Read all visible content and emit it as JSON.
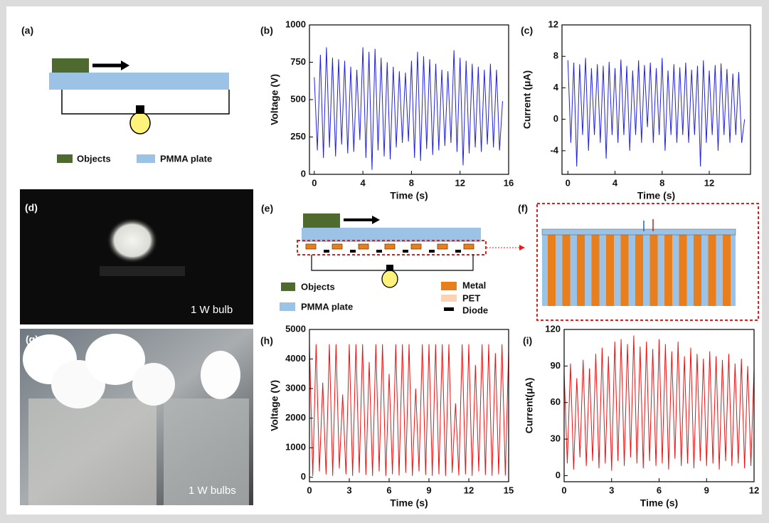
{
  "panel_labels": [
    "(a)",
    "(b)",
    "(c)",
    "(d)",
    "(e)",
    "(f)",
    "(g)",
    "(h)",
    "(i)"
  ],
  "diagram_a": {
    "legend": [
      "Objects",
      "PMMA plate"
    ]
  },
  "photo_d": {
    "caption": "1 W bulb"
  },
  "diagram_e": {
    "legend": [
      "Objects",
      "PMMA plate",
      "Metal",
      "PET",
      "Diode"
    ]
  },
  "photo_g": {
    "caption": "1 W bulbs"
  },
  "chart_data": [
    {
      "type": "line",
      "x_label": "Time (s)",
      "y_label": "Voltage (V)",
      "color": "#2222dd",
      "xlim": [
        -0.4,
        16
      ],
      "xticks": [
        0,
        4,
        8,
        12,
        16
      ],
      "ylim": [
        0,
        1000
      ],
      "yticks": [
        0,
        250,
        500,
        750,
        1000
      ],
      "x": [
        0,
        0.25,
        0.5,
        0.75,
        1,
        1.25,
        1.5,
        1.75,
        2,
        2.25,
        2.5,
        2.75,
        3,
        3.25,
        3.5,
        3.75,
        4,
        4.25,
        4.5,
        4.75,
        5,
        5.25,
        5.5,
        5.75,
        6,
        6.25,
        6.5,
        6.75,
        7,
        7.25,
        7.5,
        7.75,
        8,
        8.25,
        8.5,
        8.75,
        9,
        9.25,
        9.5,
        9.75,
        10,
        10.25,
        10.5,
        10.75,
        11,
        11.25,
        11.5,
        11.75,
        12,
        12.25,
        12.5,
        12.75,
        13,
        13.25,
        13.5,
        13.75,
        14,
        14.25,
        14.5,
        14.75,
        15,
        15.25,
        15.5
      ],
      "values": [
        650,
        160,
        800,
        110,
        850,
        180,
        780,
        120,
        770,
        200,
        760,
        140,
        720,
        150,
        700,
        230,
        850,
        110,
        820,
        30,
        840,
        160,
        780,
        120,
        750,
        100,
        720,
        180,
        690,
        210,
        680,
        220,
        760,
        110,
        820,
        90,
        790,
        170,
        770,
        130,
        740,
        160,
        700,
        190,
        690,
        210,
        830,
        150,
        780,
        60,
        760,
        140,
        740,
        180,
        720,
        150,
        700,
        200,
        740,
        180,
        700,
        160,
        490
      ]
    },
    {
      "type": "line",
      "x_label": "Time (s)",
      "y_label": "Current (μA)",
      "color": "#2222dd",
      "xlim": [
        -0.5,
        15.5
      ],
      "xticks": [
        0,
        4,
        8,
        12
      ],
      "ylim": [
        -7,
        12
      ],
      "yticks": [
        -4,
        0,
        4,
        8,
        12
      ],
      "x": [
        0,
        0.25,
        0.5,
        0.75,
        1,
        1.25,
        1.5,
        1.75,
        2,
        2.25,
        2.5,
        2.75,
        3,
        3.25,
        3.5,
        3.75,
        4,
        4.25,
        4.5,
        4.75,
        5,
        5.25,
        5.5,
        5.75,
        6,
        6.25,
        6.5,
        6.75,
        7,
        7.25,
        7.5,
        7.75,
        8,
        8.25,
        8.5,
        8.75,
        9,
        9.25,
        9.5,
        9.75,
        10,
        10.25,
        10.5,
        10.75,
        11,
        11.25,
        11.5,
        11.75,
        12,
        12.25,
        12.5,
        12.75,
        13,
        13.25,
        13.5,
        13.75,
        14,
        14.25,
        14.5,
        14.75,
        15
      ],
      "values": [
        7.5,
        -3,
        7.2,
        -6,
        7,
        -2,
        7.8,
        -4,
        6.5,
        -2,
        7,
        -3,
        6.8,
        -5,
        7.3,
        -2,
        6.5,
        -3,
        7.6,
        -2,
        6.8,
        -4,
        6.2,
        -2,
        7.5,
        -3,
        6.9,
        -1,
        7.2,
        -3,
        6.5,
        -2,
        7.8,
        -4,
        6.2,
        -2,
        7,
        -3,
        6.6,
        -2,
        7.2,
        -3,
        6.3,
        -2,
        6.8,
        -6,
        7.5,
        -3,
        6.2,
        -2,
        6.9,
        -4,
        7.1,
        -2,
        6.4,
        -3,
        5.8,
        -2,
        6,
        -3,
        0
      ]
    },
    {
      "type": "line",
      "x_label": "Time (s)",
      "y_label": "Voltage (V)",
      "color": "#ee1111",
      "xlim": [
        0,
        15
      ],
      "xticks": [
        0,
        3,
        6,
        9,
        12,
        15
      ],
      "ylim": [
        -150,
        5000
      ],
      "yticks": [
        0,
        1000,
        2000,
        3000,
        4000,
        5000
      ],
      "x": [
        0,
        0.25,
        0.5,
        0.75,
        1,
        1.25,
        1.5,
        1.75,
        2,
        2.25,
        2.5,
        2.75,
        3,
        3.25,
        3.5,
        3.75,
        4,
        4.25,
        4.5,
        4.75,
        5,
        5.25,
        5.5,
        5.75,
        6,
        6.25,
        6.5,
        6.75,
        7,
        7.25,
        7.5,
        7.75,
        8,
        8.25,
        8.5,
        8.75,
        9,
        9.25,
        9.5,
        9.75,
        10,
        10.25,
        10.5,
        10.75,
        11,
        11.25,
        11.5,
        11.75,
        12,
        12.25,
        12.5,
        12.75,
        13,
        13.25,
        13.5,
        13.75,
        14,
        14.25,
        14.5,
        14.75,
        15
      ],
      "values": [
        4500,
        50,
        4500,
        200,
        3200,
        100,
        4500,
        50,
        4500,
        300,
        2800,
        100,
        4500,
        50,
        4500,
        150,
        4500,
        80,
        3900,
        50,
        4500,
        200,
        4500,
        50,
        3500,
        100,
        4500,
        60,
        4500,
        150,
        4500,
        50,
        3000,
        200,
        4500,
        80,
        4500,
        50,
        4500,
        100,
        4500,
        50,
        4500,
        150,
        2500,
        60,
        4500,
        100,
        4500,
        50,
        3800,
        200,
        4500,
        80,
        4500,
        50,
        4200,
        100,
        4500,
        60,
        4300
      ]
    },
    {
      "type": "line",
      "x_label": "Time (s)",
      "y_label": "Current(μA)",
      "color": "#ee1111",
      "xlim": [
        0,
        12
      ],
      "xticks": [
        0,
        3,
        6,
        9,
        12
      ],
      "ylim": [
        -5,
        120
      ],
      "yticks": [
        0,
        30,
        60,
        90,
        120
      ],
      "x": [
        0,
        0.2,
        0.4,
        0.6,
        0.8,
        1,
        1.2,
        1.4,
        1.6,
        1.8,
        2,
        2.2,
        2.4,
        2.6,
        2.8,
        3,
        3.2,
        3.4,
        3.6,
        3.8,
        4,
        4.2,
        4.4,
        4.6,
        4.8,
        5,
        5.2,
        5.4,
        5.6,
        5.8,
        6,
        6.2,
        6.4,
        6.6,
        6.8,
        7,
        7.2,
        7.4,
        7.6,
        7.8,
        8,
        8.2,
        8.4,
        8.6,
        8.8,
        9,
        9.2,
        9.4,
        9.6,
        9.8,
        10,
        10.2,
        10.4,
        10.6,
        10.8,
        11,
        11.2,
        11.4,
        11.6,
        11.8,
        12
      ],
      "values": [
        85,
        10,
        92,
        5,
        80,
        15,
        95,
        8,
        88,
        12,
        100,
        6,
        105,
        10,
        98,
        4,
        110,
        12,
        112,
        8,
        108,
        15,
        115,
        10,
        106,
        6,
        110,
        12,
        104,
        8,
        112,
        10,
        108,
        5,
        102,
        14,
        110,
        8,
        98,
        10,
        105,
        6,
        100,
        12,
        96,
        8,
        102,
        10,
        98,
        5,
        95,
        12,
        100,
        8,
        92,
        10,
        96,
        6,
        90,
        8,
        88
      ]
    }
  ]
}
